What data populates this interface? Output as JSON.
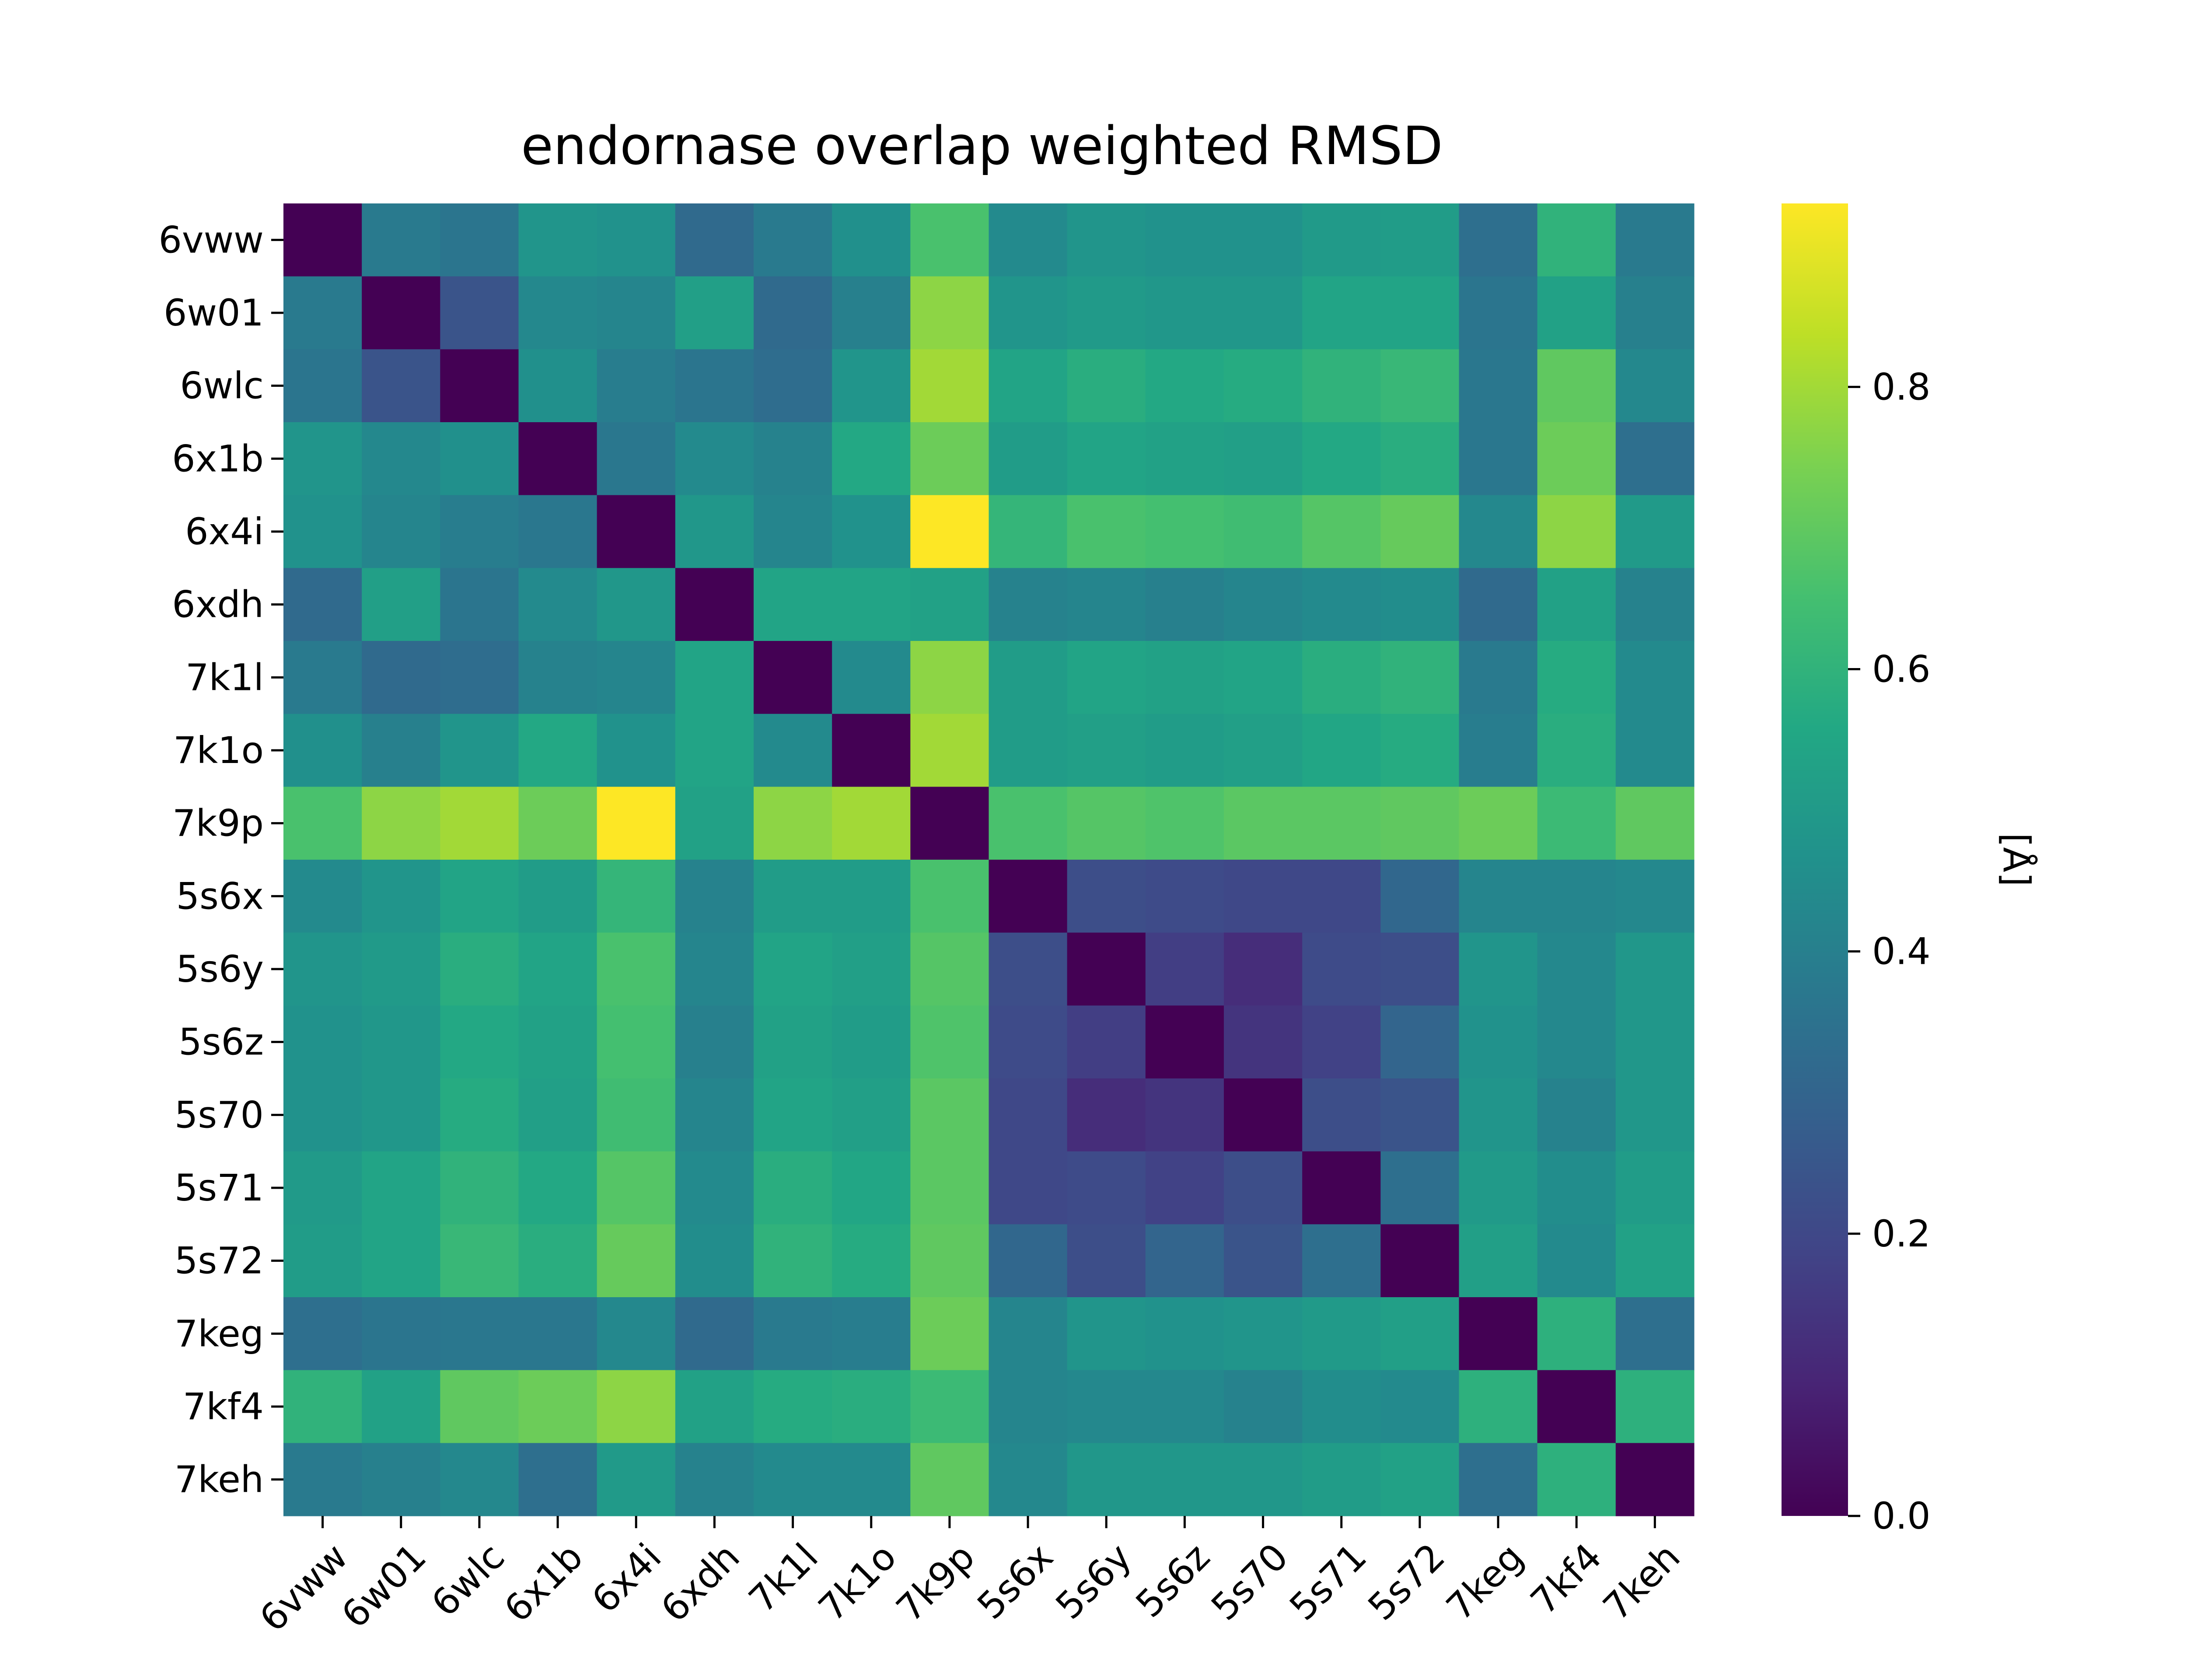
{
  "chart_data": {
    "type": "heatmap",
    "title": "endornase overlap weighted RMSD",
    "xlabel": "",
    "ylabel": "",
    "colorbar_label": "[Å]",
    "colormap": "viridis",
    "color_range": [
      0.0,
      0.93
    ],
    "colorbar_ticks": [
      "0.0",
      "0.2",
      "0.4",
      "0.6",
      "0.8"
    ],
    "colorbar_tick_values": [
      0.0,
      0.2,
      0.4,
      0.6,
      0.8
    ],
    "x_categories": [
      "6vww",
      "6w01",
      "6wlc",
      "6x1b",
      "6x4i",
      "6xdh",
      "7k1l",
      "7k1o",
      "7k9p",
      "5s6x",
      "5s6y",
      "5s6z",
      "5s70",
      "5s71",
      "5s72",
      "7keg",
      "7kf4",
      "7keh"
    ],
    "y_categories": [
      "6vww",
      "6w01",
      "6wlc",
      "6x1b",
      "6x4i",
      "6xdh",
      "7k1l",
      "7k1o",
      "7k9p",
      "5s6x",
      "5s6y",
      "5s6z",
      "5s70",
      "5s71",
      "5s72",
      "7keg",
      "7kf4",
      "7keh"
    ],
    "values": [
      [
        0.0,
        0.38,
        0.36,
        0.48,
        0.47,
        0.32,
        0.38,
        0.46,
        0.66,
        0.44,
        0.48,
        0.47,
        0.47,
        0.5,
        0.51,
        0.34,
        0.6,
        0.38
      ],
      [
        0.38,
        0.0,
        0.24,
        0.43,
        0.42,
        0.52,
        0.32,
        0.4,
        0.77,
        0.48,
        0.5,
        0.49,
        0.49,
        0.54,
        0.54,
        0.36,
        0.53,
        0.4
      ],
      [
        0.36,
        0.24,
        0.0,
        0.46,
        0.39,
        0.36,
        0.33,
        0.48,
        0.8,
        0.54,
        0.58,
        0.56,
        0.57,
        0.6,
        0.62,
        0.37,
        0.7,
        0.43
      ],
      [
        0.48,
        0.43,
        0.46,
        0.0,
        0.37,
        0.44,
        0.41,
        0.56,
        0.72,
        0.51,
        0.54,
        0.53,
        0.52,
        0.56,
        0.58,
        0.37,
        0.72,
        0.34
      ],
      [
        0.47,
        0.42,
        0.39,
        0.37,
        0.0,
        0.49,
        0.42,
        0.47,
        0.93,
        0.61,
        0.66,
        0.65,
        0.64,
        0.68,
        0.71,
        0.43,
        0.77,
        0.5
      ],
      [
        0.32,
        0.52,
        0.36,
        0.44,
        0.49,
        0.0,
        0.54,
        0.54,
        0.53,
        0.41,
        0.42,
        0.4,
        0.42,
        0.44,
        0.45,
        0.32,
        0.53,
        0.41
      ],
      [
        0.38,
        0.32,
        0.33,
        0.41,
        0.42,
        0.54,
        0.0,
        0.44,
        0.77,
        0.51,
        0.54,
        0.53,
        0.54,
        0.58,
        0.6,
        0.38,
        0.57,
        0.44
      ],
      [
        0.46,
        0.4,
        0.48,
        0.56,
        0.47,
        0.54,
        0.44,
        0.0,
        0.8,
        0.51,
        0.52,
        0.51,
        0.52,
        0.55,
        0.57,
        0.39,
        0.58,
        0.44
      ],
      [
        0.66,
        0.77,
        0.8,
        0.72,
        0.93,
        0.53,
        0.77,
        0.8,
        0.0,
        0.66,
        0.68,
        0.67,
        0.69,
        0.69,
        0.7,
        0.72,
        0.63,
        0.7
      ],
      [
        0.44,
        0.48,
        0.54,
        0.51,
        0.61,
        0.41,
        0.51,
        0.51,
        0.66,
        0.0,
        0.22,
        0.21,
        0.2,
        0.2,
        0.31,
        0.42,
        0.42,
        0.43
      ],
      [
        0.48,
        0.5,
        0.58,
        0.54,
        0.66,
        0.42,
        0.54,
        0.52,
        0.68,
        0.22,
        0.0,
        0.17,
        0.12,
        0.21,
        0.22,
        0.48,
        0.43,
        0.49
      ],
      [
        0.47,
        0.49,
        0.56,
        0.53,
        0.65,
        0.4,
        0.53,
        0.51,
        0.67,
        0.21,
        0.17,
        0.0,
        0.14,
        0.18,
        0.3,
        0.47,
        0.43,
        0.49
      ],
      [
        0.47,
        0.49,
        0.57,
        0.52,
        0.64,
        0.42,
        0.54,
        0.52,
        0.69,
        0.2,
        0.12,
        0.14,
        0.0,
        0.22,
        0.24,
        0.48,
        0.41,
        0.49
      ],
      [
        0.5,
        0.54,
        0.6,
        0.56,
        0.68,
        0.44,
        0.58,
        0.55,
        0.69,
        0.2,
        0.21,
        0.18,
        0.22,
        0.0,
        0.34,
        0.5,
        0.45,
        0.51
      ],
      [
        0.51,
        0.54,
        0.62,
        0.58,
        0.71,
        0.45,
        0.6,
        0.57,
        0.7,
        0.31,
        0.22,
        0.3,
        0.24,
        0.34,
        0.0,
        0.52,
        0.44,
        0.53
      ],
      [
        0.34,
        0.36,
        0.37,
        0.37,
        0.43,
        0.32,
        0.38,
        0.39,
        0.72,
        0.42,
        0.48,
        0.47,
        0.48,
        0.5,
        0.52,
        0.0,
        0.59,
        0.34
      ],
      [
        0.6,
        0.53,
        0.7,
        0.72,
        0.77,
        0.53,
        0.57,
        0.58,
        0.63,
        0.42,
        0.43,
        0.43,
        0.41,
        0.45,
        0.44,
        0.59,
        0.0,
        0.59
      ],
      [
        0.38,
        0.4,
        0.43,
        0.34,
        0.5,
        0.41,
        0.44,
        0.44,
        0.7,
        0.43,
        0.49,
        0.49,
        0.49,
        0.51,
        0.53,
        0.34,
        0.59,
        0.0
      ]
    ]
  }
}
